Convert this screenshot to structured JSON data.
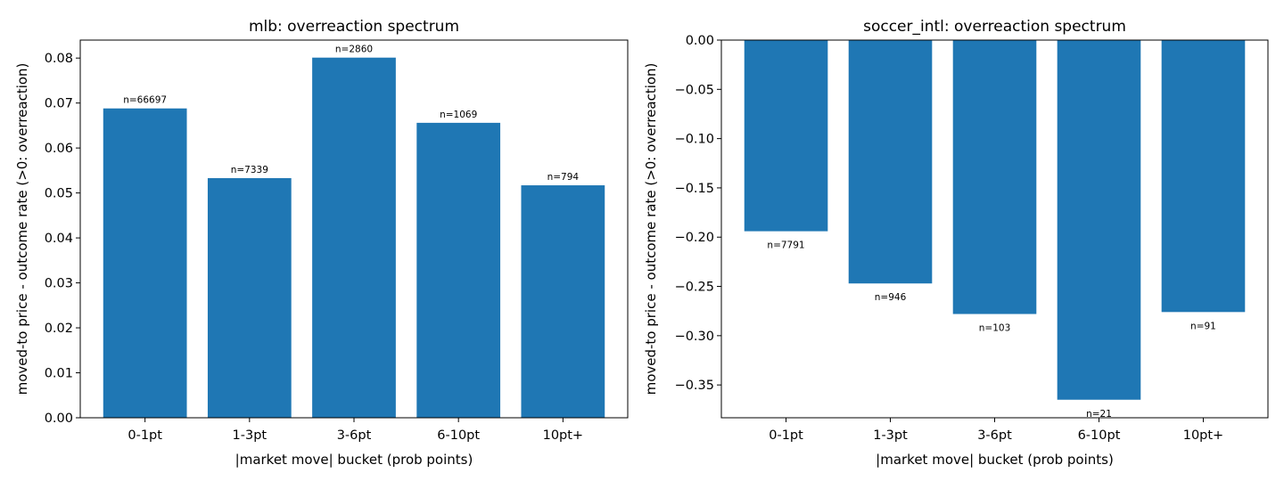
{
  "chart_data": [
    {
      "type": "bar",
      "title": "mlb: overreaction spectrum",
      "xlabel": "|market move| bucket (prob points)",
      "ylabel": "moved-to price - outcome rate (>0: overreaction)",
      "categories": [
        "0-1pt",
        "1-3pt",
        "3-6pt",
        "6-10pt",
        "10pt+"
      ],
      "values": [
        0.0688,
        0.0533,
        0.0801,
        0.0656,
        0.0517
      ],
      "bar_labels": [
        "n=66697",
        "n=7339",
        "n=2860",
        "n=1069",
        "n=794"
      ],
      "ylim": [
        0,
        0.084
      ],
      "yticks": [
        0.0,
        0.01,
        0.02,
        0.03,
        0.04,
        0.05,
        0.06,
        0.07,
        0.08
      ],
      "ytick_labels": [
        "0.00",
        "0.01",
        "0.02",
        "0.03",
        "0.04",
        "0.05",
        "0.06",
        "0.07",
        "0.08"
      ],
      "bar_color": "#1f77b4",
      "grid": false
    },
    {
      "type": "bar",
      "title": "soccer_intl: overreaction spectrum",
      "xlabel": "|market move| bucket (prob points)",
      "ylabel": "moved-to price - outcome rate (>0: overreaction)",
      "categories": [
        "0-1pt",
        "1-3pt",
        "3-6pt",
        "6-10pt",
        "10pt+"
      ],
      "values": [
        -0.194,
        -0.247,
        -0.278,
        -0.365,
        -0.276
      ],
      "bar_labels": [
        "n=7791",
        "n=946",
        "n=103",
        "n=21",
        "n=91"
      ],
      "ylim": [
        -0.3833,
        0
      ],
      "yticks": [
        0.0,
        -0.05,
        -0.1,
        -0.15,
        -0.2,
        -0.25,
        -0.3,
        -0.35
      ],
      "ytick_labels": [
        "0.00",
        "−0.05",
        "−0.10",
        "−0.15",
        "−0.20",
        "−0.25",
        "−0.30",
        "−0.35"
      ],
      "bar_color": "#1f77b4",
      "grid": false
    }
  ]
}
